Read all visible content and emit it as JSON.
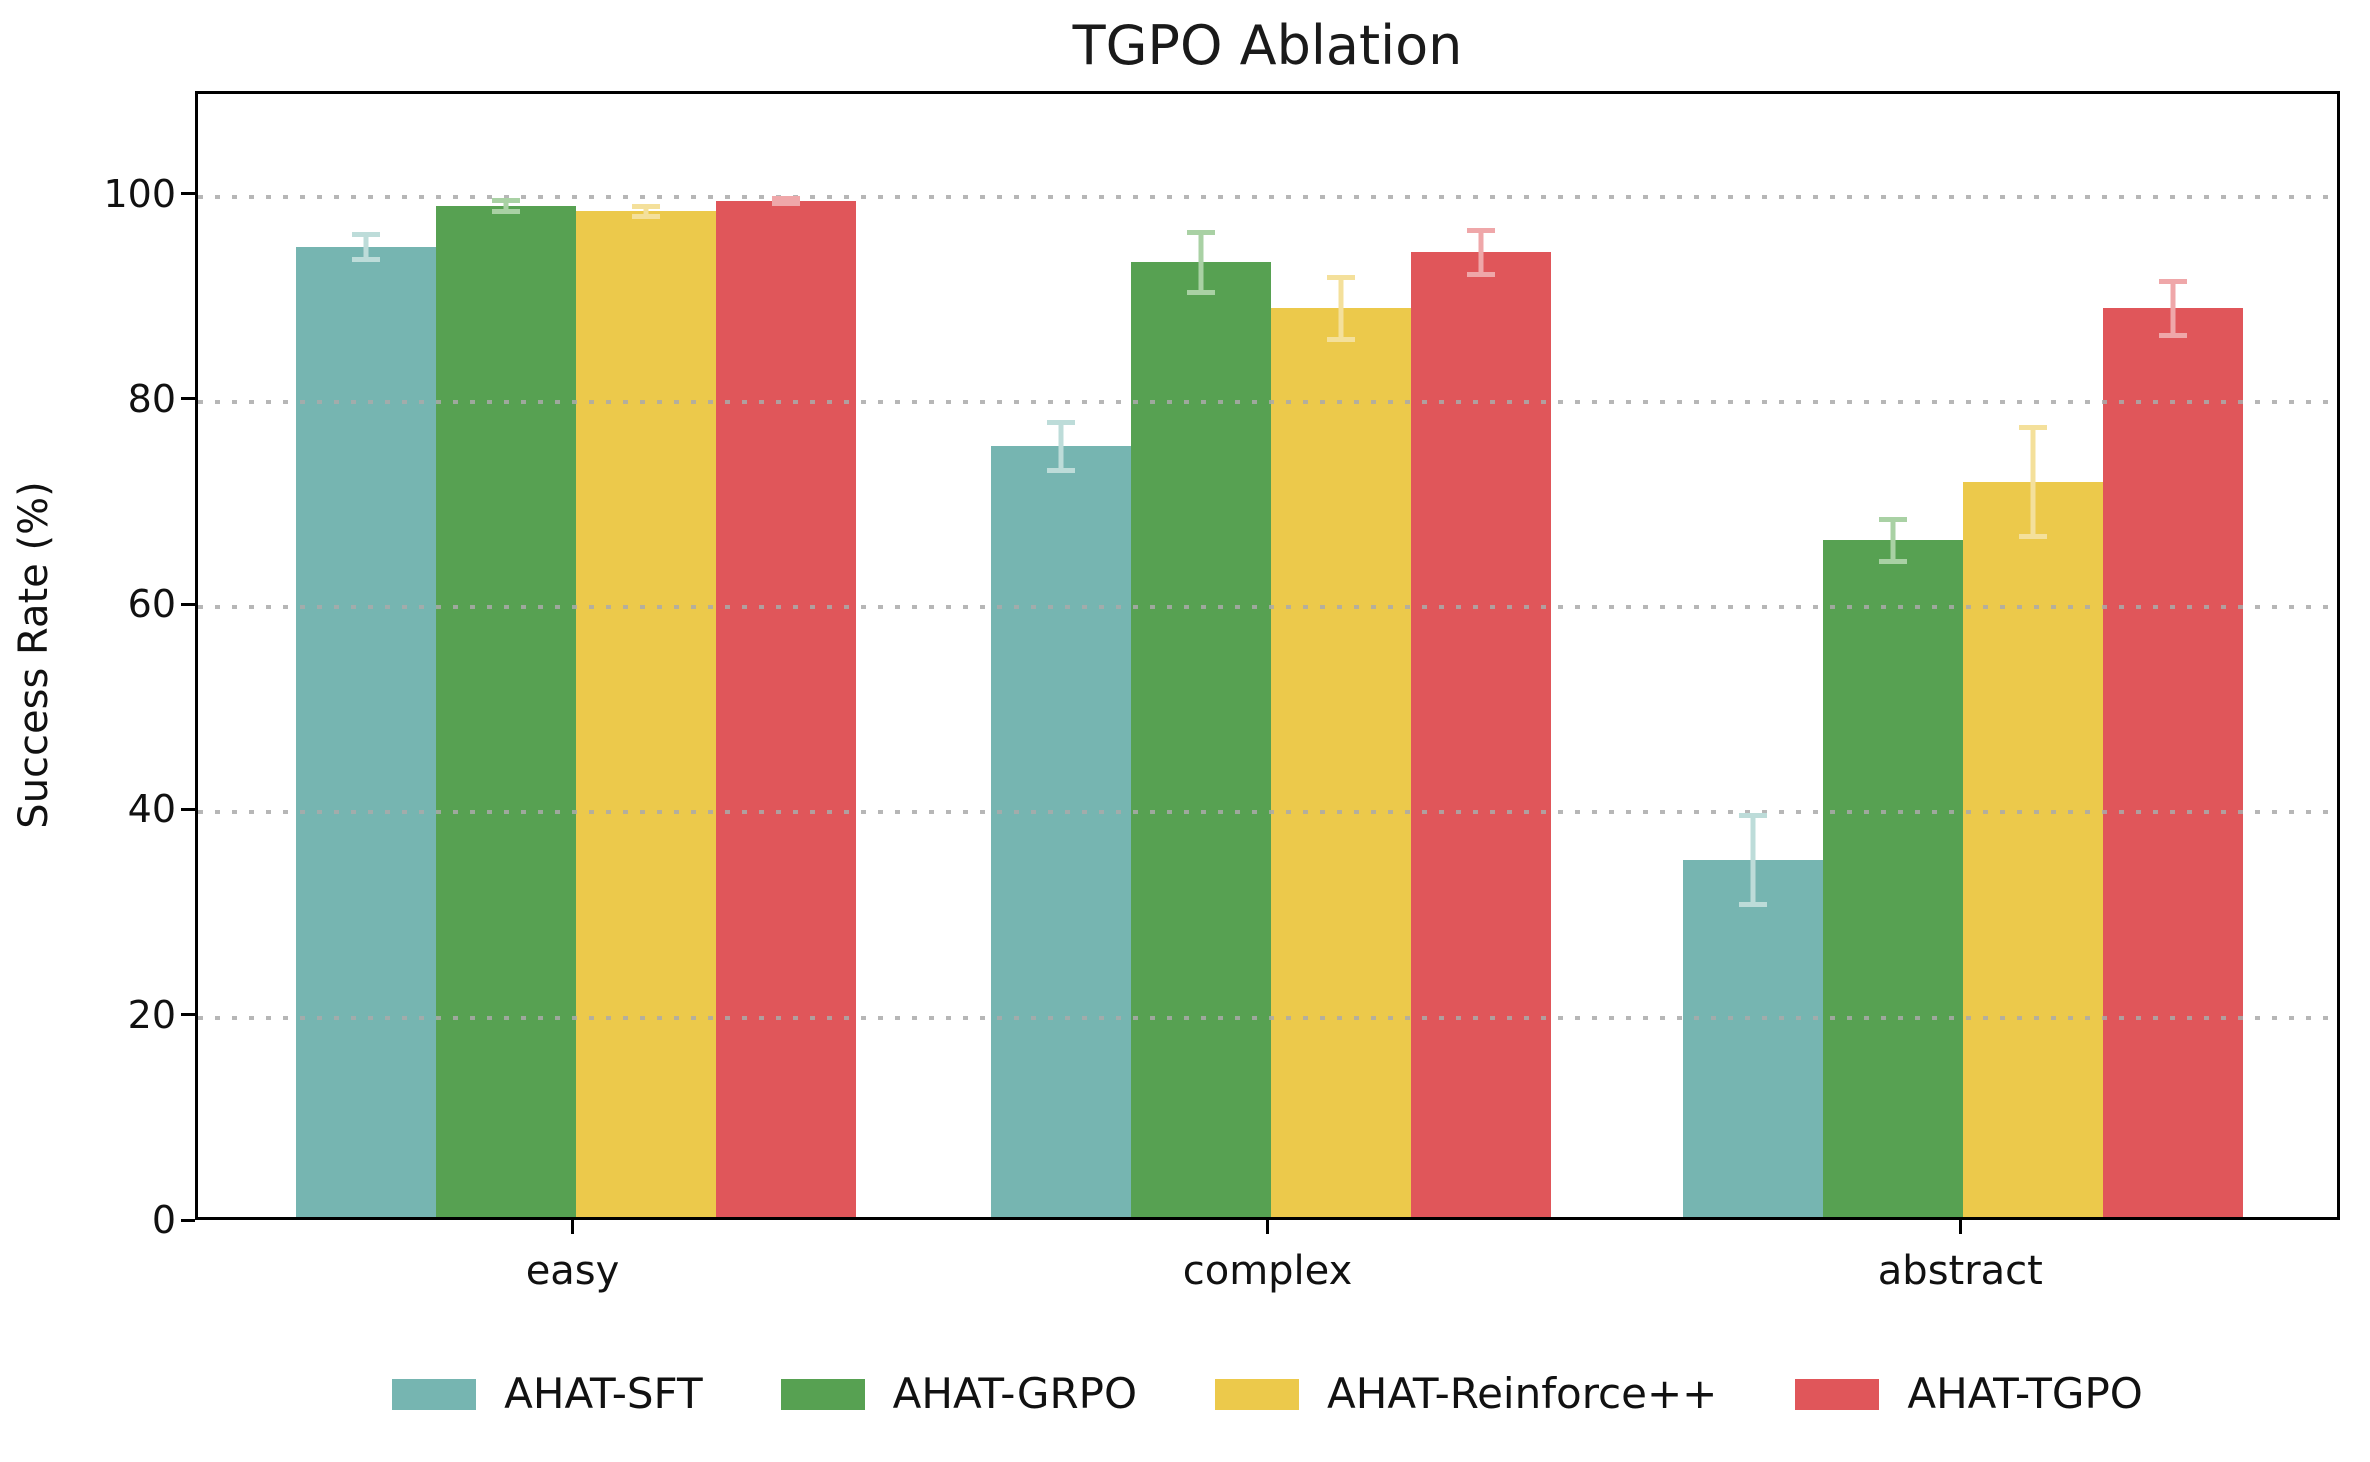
{
  "title": "TGPO Ablation",
  "y_axis_label": "Success Rate (%)",
  "chart_data": {
    "type": "bar",
    "title": "TGPO Ablation",
    "xlabel": "",
    "ylabel": "Success Rate (%)",
    "categories": [
      "easy",
      "complex",
      "abstract"
    ],
    "series": [
      {
        "name": "AHAT-SFT",
        "color": "#76b5b1",
        "error_color": "#bddcd9",
        "values": [
          95.0,
          75.5,
          35.0
        ],
        "errors": [
          1.5,
          2.6,
          4.6
        ]
      },
      {
        "name": "AHAT-GRPO",
        "color": "#57a152",
        "error_color": "#a9d1a4",
        "values": [
          99.0,
          93.5,
          66.3
        ],
        "errors": [
          0.8,
          3.2,
          2.3
        ]
      },
      {
        "name": "AHAT-Reinforce++",
        "color": "#ecc94b",
        "error_color": "#f4e09b",
        "values": [
          98.5,
          89.0,
          72.0
        ],
        "errors": [
          0.7,
          3.3,
          5.6
        ]
      },
      {
        "name": "AHAT-TGPO",
        "color": "#e0565a",
        "error_color": "#efa7a9",
        "values": [
          99.5,
          94.5,
          89.0
        ],
        "errors": [
          0.5,
          2.4,
          2.9
        ]
      }
    ],
    "ylim": [
      0,
      110
    ],
    "yticks": [
      "0",
      "20",
      "40",
      "60",
      "80",
      "100"
    ],
    "ytick_values": [
      0,
      20,
      40,
      60,
      80,
      100
    ],
    "grid": "dotted horizontal, drawn over bars",
    "gridline_color": "#ababab",
    "legend_position": "bottom center",
    "error_bars": "symmetric, light-tinted per series"
  }
}
